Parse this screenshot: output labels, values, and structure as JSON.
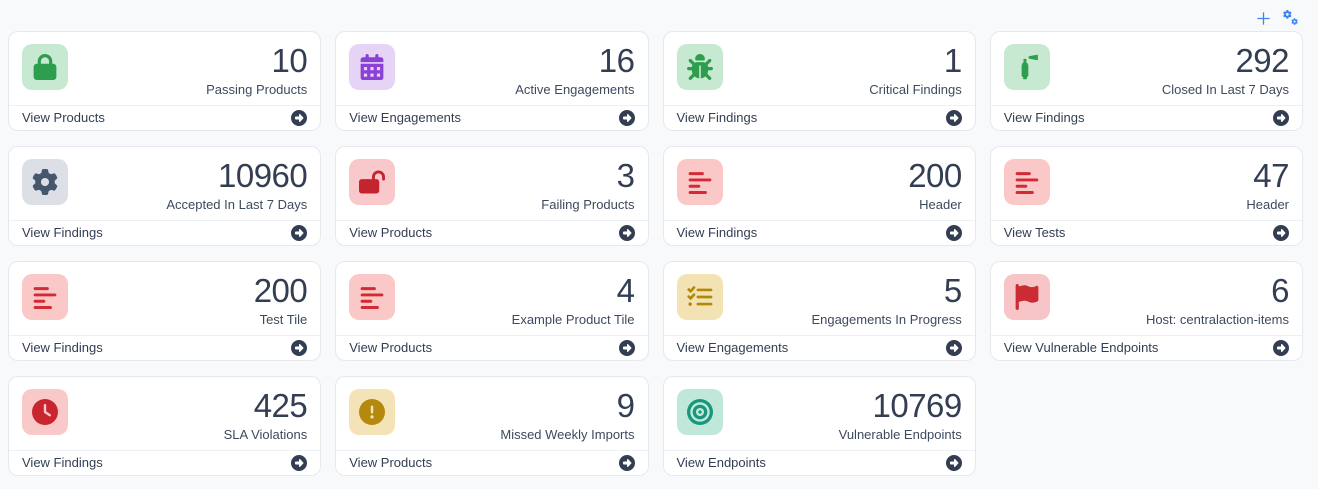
{
  "toolbar": {
    "icon_color": "#3c83f6",
    "buttons": [
      {
        "name": "add-tile-button",
        "icon": "plus"
      },
      {
        "name": "configure-tiles-button",
        "icon": "gears"
      }
    ]
  },
  "arrow_icon_color": "#333e52",
  "tiles": [
    {
      "icon": "lock",
      "icon_color": "#2d9e4e",
      "icon_bg": "#c7e9d1",
      "value": "10",
      "label": "Passing Products",
      "footer": "View Products"
    },
    {
      "icon": "calendar",
      "icon_color": "#8b41d6",
      "icon_bg": "#e5d4f6",
      "value": "16",
      "label": "Active Engagements",
      "footer": "View Engagements"
    },
    {
      "icon": "bug",
      "icon_color": "#2d9e4e",
      "icon_bg": "#c7e9d1",
      "value": "1",
      "label": "Critical Findings",
      "footer": "View Findings"
    },
    {
      "icon": "fire-extinguisher",
      "icon_color": "#2d9e4e",
      "icon_bg": "#c7e9d1",
      "value": "292",
      "label": "Closed In Last 7 Days",
      "footer": "View Findings"
    },
    {
      "icon": "gear",
      "icon_color": "#46566b",
      "icon_bg": "#dce0e6",
      "value": "10960",
      "label": "Accepted In Last 7 Days",
      "footer": "View Findings"
    },
    {
      "icon": "lock-open",
      "icon_color": "#c5232e",
      "icon_bg": "#f8c8ca",
      "value": "3",
      "label": "Failing Products",
      "footer": "View Products"
    },
    {
      "icon": "align-left",
      "icon_color": "#d22b35",
      "icon_bg": "#fbc8c8",
      "value": "200",
      "label": "Header",
      "footer": "View Findings"
    },
    {
      "icon": "align-left",
      "icon_color": "#d22b35",
      "icon_bg": "#fbc8c8",
      "value": "47",
      "label": "Header",
      "footer": "View Tests"
    },
    {
      "icon": "align-left",
      "icon_color": "#d22b35",
      "icon_bg": "#fbc8c8",
      "value": "200",
      "label": "Test Tile",
      "footer": "View Findings"
    },
    {
      "icon": "align-left",
      "icon_color": "#d22b35",
      "icon_bg": "#fbc8c8",
      "value": "4",
      "label": "Example Product Tile",
      "footer": "View Products"
    },
    {
      "icon": "list-check",
      "icon_color": "#b08908",
      "icon_bg": "#f3e2b3",
      "value": "5",
      "label": "Engagements In Progress",
      "footer": "View Engagements"
    },
    {
      "icon": "flag",
      "icon_color": "#cb2c34",
      "icon_bg": "#f7c5c8",
      "value": "6",
      "label": "Host: centralaction-items",
      "footer": "View Vulnerable Endpoints"
    },
    {
      "icon": "clock",
      "icon_color": "#c9252f",
      "icon_bg": "#f9c9ca",
      "value": "425",
      "label": "SLA Violations",
      "footer": "View Findings"
    },
    {
      "icon": "circle-exclamation",
      "icon_color": "#b5890e",
      "icon_bg": "#f4e3b6",
      "value": "9",
      "label": "Missed Weekly Imports",
      "footer": "View Products"
    },
    {
      "icon": "bullseye",
      "icon_color": "#18977c",
      "icon_bg": "#bfe7da",
      "value": "10769",
      "label": "Vulnerable Endpoints",
      "footer": "View Endpoints"
    }
  ]
}
